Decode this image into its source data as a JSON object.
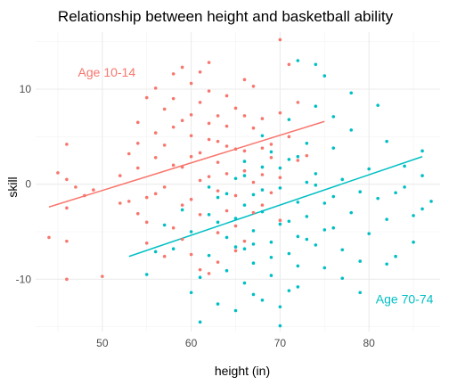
{
  "chart_data": {
    "type": "scatter",
    "title": "Relationship between height and basketball ability",
    "xlabel": "height (in)",
    "ylabel": "skill",
    "xlim": [
      42.5,
      88
    ],
    "ylim": [
      -15.5,
      16
    ],
    "x_ticks": [
      "50",
      "60",
      "70",
      "80"
    ],
    "y_ticks": [
      "-10",
      "0",
      "10"
    ],
    "grid": true,
    "legend": "none",
    "annotations": [
      {
        "text": "Age 10-14",
        "x": 50.5,
        "y": 11.8,
        "color": "#F8766D"
      },
      {
        "text": "Age 70-74",
        "x": 84,
        "y": -12.1,
        "color": "#00BFC4"
      }
    ],
    "series": [
      {
        "color": "#F8766D",
        "trend": {
          "x": [
            44,
            75
          ],
          "y": [
            -2.4,
            6.6
          ]
        },
        "points": [
          [
            46,
            4.2
          ],
          [
            45,
            1.2
          ],
          [
            46,
            0.5
          ],
          [
            47,
            -0.3
          ],
          [
            48,
            -1.2
          ],
          [
            49,
            -0.6
          ],
          [
            46,
            -2.5
          ],
          [
            44,
            -5.6
          ],
          [
            46,
            -6.0
          ],
          [
            46,
            -10.0
          ],
          [
            50,
            -9.7
          ],
          [
            52,
            -2.0
          ],
          [
            52,
            0.9
          ],
          [
            53,
            -1.8
          ],
          [
            54,
            1.7
          ],
          [
            54,
            4.3
          ],
          [
            54,
            6.5
          ],
          [
            55,
            -1.4
          ],
          [
            55,
            -4.0
          ],
          [
            55,
            -6.2
          ],
          [
            56,
            5.4
          ],
          [
            56,
            2.8
          ],
          [
            57,
            7.9
          ],
          [
            57,
            -0.3
          ],
          [
            58,
            11.6
          ],
          [
            58,
            9.0
          ],
          [
            58,
            -4.6
          ],
          [
            59,
            12.3
          ],
          [
            59,
            6.7
          ],
          [
            59,
            1.8
          ],
          [
            60,
            10.6
          ],
          [
            60,
            5.1
          ],
          [
            60,
            -1.6
          ],
          [
            60,
            -7.4
          ],
          [
            61,
            8.6
          ],
          [
            61,
            3.3
          ],
          [
            61,
            -3.2
          ],
          [
            62,
            12.8
          ],
          [
            62,
            9.8
          ],
          [
            62,
            0.8
          ],
          [
            62,
            -9.4
          ],
          [
            63,
            7.2
          ],
          [
            63,
            4.5
          ],
          [
            63,
            -0.7
          ],
          [
            63,
            -8.2
          ],
          [
            64,
            9.3
          ],
          [
            64,
            6.1
          ],
          [
            64,
            -2.8
          ],
          [
            65,
            8.0
          ],
          [
            65,
            3.7
          ],
          [
            65,
            -4.4
          ],
          [
            66,
            11.0
          ],
          [
            66,
            1.4
          ],
          [
            66,
            -6.0
          ],
          [
            67,
            10.3
          ],
          [
            67,
            5.9
          ],
          [
            67,
            0.2
          ],
          [
            68,
            6.9
          ],
          [
            68,
            -2.2
          ],
          [
            69,
            4.2
          ],
          [
            69,
            -0.9
          ],
          [
            70,
            15.2
          ],
          [
            70,
            7.5
          ],
          [
            70,
            -3.8
          ],
          [
            71,
            12.6
          ],
          [
            71,
            5.0
          ],
          [
            72,
            8.6
          ],
          [
            72,
            2.5
          ],
          [
            73,
            3.0
          ],
          [
            55,
            9.1
          ],
          [
            56,
            10.1
          ],
          [
            57,
            4.1
          ],
          [
            58,
            2.0
          ],
          [
            59,
            -2.2
          ],
          [
            60,
            2.9
          ],
          [
            61,
            0.4
          ],
          [
            62,
            4.7
          ],
          [
            63,
            2.3
          ],
          [
            64,
            1.1
          ],
          [
            65,
            -1.2
          ],
          [
            66,
            3.5
          ],
          [
            67,
            -3.0
          ],
          [
            68,
            1.0
          ],
          [
            69,
            2.8
          ],
          [
            70,
            0.7
          ],
          [
            57,
            -7.6
          ],
          [
            59,
            -5.8
          ],
          [
            61,
            -9.0
          ],
          [
            63,
            -5.1
          ],
          [
            65,
            -7.0
          ],
          [
            53,
            3.2
          ],
          [
            54,
            -3.1
          ],
          [
            56,
            -1.0
          ],
          [
            58,
            6.0
          ],
          [
            60,
            7.3
          ],
          [
            62,
            6.4
          ],
          [
            64,
            4.0
          ],
          [
            66,
            7.2
          ],
          [
            68,
            3.8
          ],
          [
            61,
            11.8
          ]
        ]
      },
      {
        "color": "#00BFC4",
        "trend": {
          "x": [
            53,
            86
          ],
          "y": [
            -7.6,
            2.9
          ]
        },
        "points": [
          [
            55,
            -9.5
          ],
          [
            56,
            -7.1
          ],
          [
            57,
            -4.3
          ],
          [
            58,
            -6.8
          ],
          [
            59,
            -2.7
          ],
          [
            60,
            -5.0
          ],
          [
            60,
            -11.4
          ],
          [
            61,
            -14.5
          ],
          [
            61,
            -9.8
          ],
          [
            62,
            -3.2
          ],
          [
            62,
            -7.5
          ],
          [
            63,
            -12.6
          ],
          [
            63,
            -1.4
          ],
          [
            64,
            -5.6
          ],
          [
            64,
            -9.1
          ],
          [
            65,
            0.6
          ],
          [
            65,
            -3.6
          ],
          [
            65,
            -13.3
          ],
          [
            66,
            -6.8
          ],
          [
            66,
            2.4
          ],
          [
            66,
            -10.4
          ],
          [
            67,
            -1.1
          ],
          [
            67,
            -4.9
          ],
          [
            67,
            -8.3
          ],
          [
            68,
            5.1
          ],
          [
            68,
            1.8
          ],
          [
            68,
            -2.9
          ],
          [
            68,
            -12.2
          ],
          [
            69,
            -6.1
          ],
          [
            69,
            3.4
          ],
          [
            69,
            -9.6
          ],
          [
            70,
            -0.4
          ],
          [
            70,
            -4.2
          ],
          [
            70,
            -14.9
          ],
          [
            71,
            2.6
          ],
          [
            71,
            -7.3
          ],
          [
            71,
            6.8
          ],
          [
            72,
            -1.9
          ],
          [
            72,
            -5.5
          ],
          [
            72,
            -10.8
          ],
          [
            73,
            4.3
          ],
          [
            73,
            0.2
          ],
          [
            73,
            -3.4
          ],
          [
            74,
            8.2
          ],
          [
            74,
            -6.4
          ],
          [
            74,
            1.1
          ],
          [
            75,
            11.4
          ],
          [
            75,
            -2.0
          ],
          [
            75,
            -8.8
          ],
          [
            76,
            3.8
          ],
          [
            76,
            -4.6
          ],
          [
            77,
            0.5
          ],
          [
            77,
            -6.9
          ],
          [
            78,
            5.7
          ],
          [
            78,
            -3.0
          ],
          [
            79,
            -0.8
          ],
          [
            79,
            -8.1
          ],
          [
            80,
            1.6
          ],
          [
            80,
            -5.2
          ],
          [
            81,
            8.3
          ],
          [
            81,
            -1.5
          ],
          [
            82,
            4.5
          ],
          [
            82,
            -3.7
          ],
          [
            83,
            -0.9
          ],
          [
            83,
            -7.6
          ],
          [
            84,
            1.9
          ],
          [
            85,
            -3.3
          ],
          [
            86,
            0.9
          ],
          [
            86,
            3.5
          ],
          [
            87,
            -1.8
          ],
          [
            72,
            13.0
          ],
          [
            74,
            12.6
          ],
          [
            76,
            7.1
          ],
          [
            78,
            9.6
          ],
          [
            84,
            -0.3
          ],
          [
            85,
            -6.1
          ],
          [
            79,
            -11.4
          ],
          [
            86,
            -2.6
          ],
          [
            77,
            -9.9
          ],
          [
            82,
            -8.4
          ],
          [
            64,
            -1.0
          ],
          [
            66,
            -2.2
          ],
          [
            68,
            -0.6
          ],
          [
            70,
            1.7
          ],
          [
            72,
            2.9
          ],
          [
            74,
            -0.1
          ],
          [
            76,
            -1.3
          ],
          [
            67,
            -6.3
          ],
          [
            69,
            -7.7
          ],
          [
            71,
            -3.9
          ],
          [
            73,
            -5.8
          ],
          [
            75,
            -4.8
          ],
          [
            63,
            -4.0
          ],
          [
            65,
            -6.6
          ],
          [
            67,
            -11.6
          ],
          [
            70,
            -12.9
          ],
          [
            72,
            -8.6
          ],
          [
            62,
            -0.3
          ],
          [
            66,
            0.9
          ],
          [
            71,
            -11.2
          ]
        ]
      }
    ]
  }
}
